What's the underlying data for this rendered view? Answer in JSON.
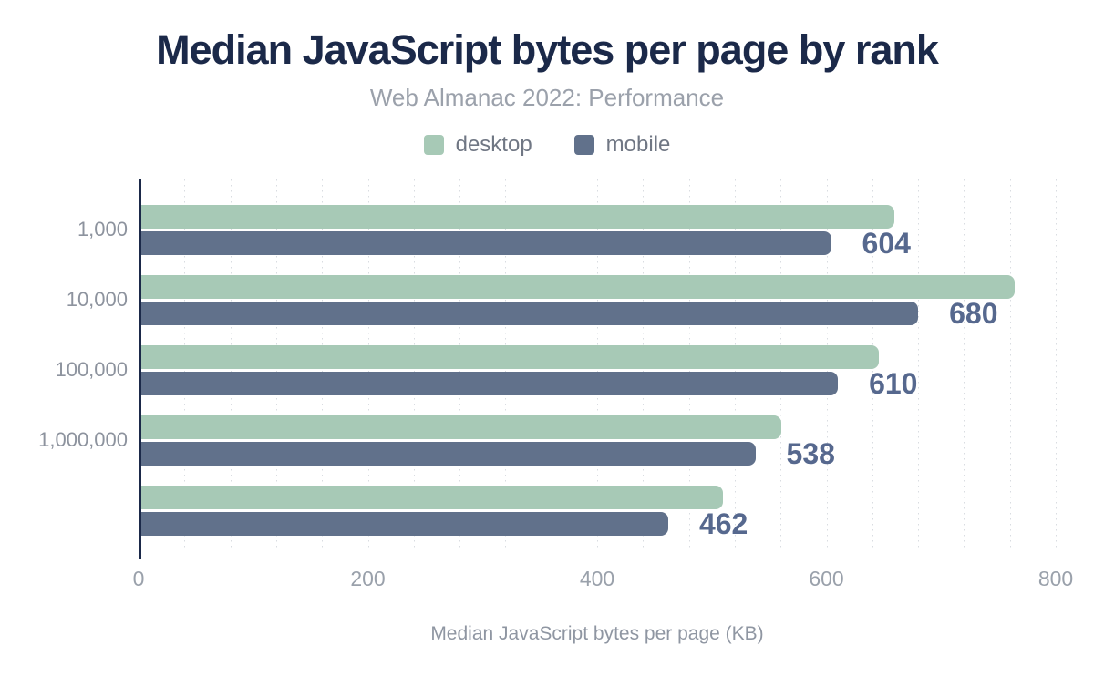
{
  "chart_data": {
    "type": "bar",
    "orientation": "horizontal",
    "title": "Median JavaScript bytes per page by rank",
    "subtitle": "Web Almanac 2022: Performance",
    "xlabel": "Median JavaScript bytes per page (KB)",
    "categories": [
      "1,000",
      "10,000",
      "100,000",
      "1,000,000",
      ""
    ],
    "series": [
      {
        "name": "desktop",
        "color": "#a7c9b6",
        "values": [
          659,
          764,
          646,
          561,
          510
        ],
        "value_labels_shown": false
      },
      {
        "name": "mobile",
        "color": "#61718b",
        "values": [
          604,
          680,
          610,
          538,
          462
        ],
        "value_labels_shown": true
      }
    ],
    "xlim": [
      0,
      800
    ],
    "xticks": [
      "0",
      "200",
      "400",
      "600",
      "800"
    ],
    "minor_gridline_step": 40,
    "gridlines": "vertical-dotted",
    "legend_position": "top",
    "colors": {
      "background": "#ffffff",
      "title": "#1b2949",
      "subtitle": "#9ba1ab",
      "legend_label": "#707784",
      "axis_line": "#1b2949",
      "category_label": "#8d939e",
      "tick_label": "#9aa1ab",
      "axis_title": "#8f96a2",
      "value_label": "#56688e",
      "gridline": "#d9dce1"
    }
  }
}
